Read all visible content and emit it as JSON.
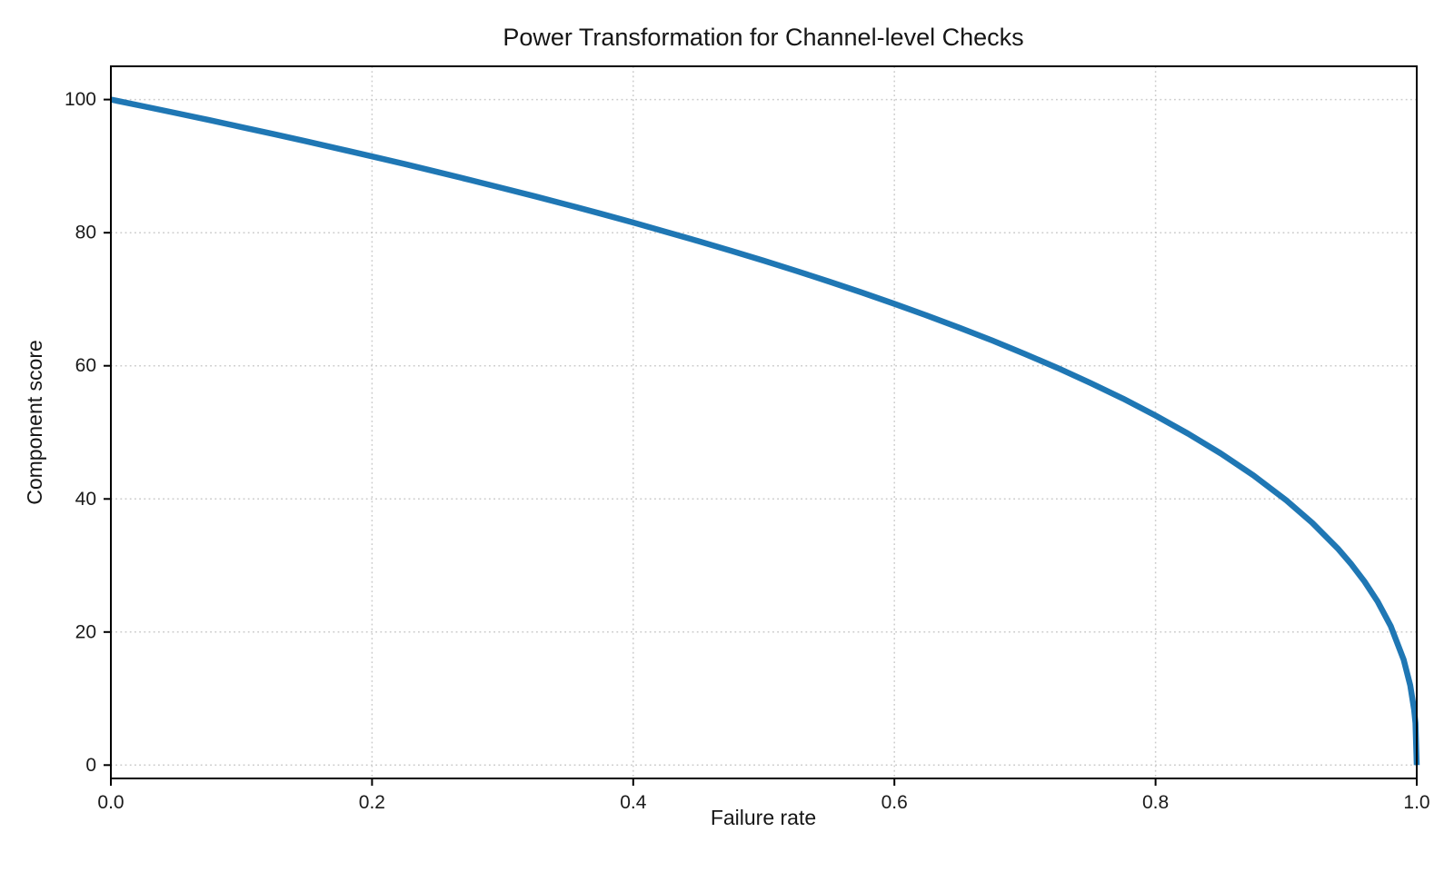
{
  "chart_data": {
    "type": "line",
    "title": "Power Transformation for Channel-level Checks",
    "xlabel": "Failure rate",
    "ylabel": "Component score",
    "xlim": [
      0.0,
      1.0
    ],
    "ylim": [
      -2,
      105
    ],
    "grid": true,
    "grid_style": "dotted",
    "legend": "none",
    "background_color": "#ffffff",
    "x_ticks": [
      0.0,
      0.2,
      0.4,
      0.6,
      0.8,
      1.0
    ],
    "x_tick_labels": [
      "0.0",
      "0.2",
      "0.4",
      "0.6",
      "0.8",
      "1.0"
    ],
    "y_ticks": [
      0,
      20,
      40,
      60,
      80,
      100
    ],
    "y_tick_labels": [
      "0",
      "20",
      "40",
      "60",
      "80",
      "100"
    ],
    "derived_relation": "score = 100 * (1 - failure_rate)^0.4",
    "series": [
      {
        "name": "Component score curve",
        "color": "#1f77b4",
        "line_width": 6.5,
        "x": [
          0.0,
          0.025,
          0.05,
          0.075,
          0.1,
          0.125,
          0.15,
          0.175,
          0.2,
          0.225,
          0.25,
          0.275,
          0.3,
          0.325,
          0.35,
          0.375,
          0.4,
          0.425,
          0.45,
          0.475,
          0.5,
          0.525,
          0.55,
          0.575,
          0.6,
          0.625,
          0.65,
          0.675,
          0.7,
          0.725,
          0.75,
          0.775,
          0.8,
          0.825,
          0.85,
          0.875,
          0.9,
          0.92,
          0.94,
          0.95,
          0.96,
          0.97,
          0.98,
          0.99,
          0.995,
          0.998,
          0.999,
          1.0
        ],
        "y": [
          100.0,
          98.99,
          97.97,
          96.93,
          95.87,
          94.8,
          93.71,
          92.59,
          91.46,
          90.31,
          89.13,
          87.93,
          86.7,
          85.45,
          84.17,
          82.86,
          81.52,
          80.14,
          78.73,
          77.28,
          75.79,
          74.25,
          72.66,
          71.02,
          69.31,
          67.55,
          65.71,
          63.79,
          61.78,
          59.67,
          57.43,
          55.07,
          52.53,
          49.8,
          46.82,
          43.53,
          39.81,
          36.41,
          32.45,
          30.17,
          27.59,
          24.6,
          20.91,
          15.85,
          12.01,
          8.33,
          6.31,
          0.0
        ]
      }
    ]
  }
}
